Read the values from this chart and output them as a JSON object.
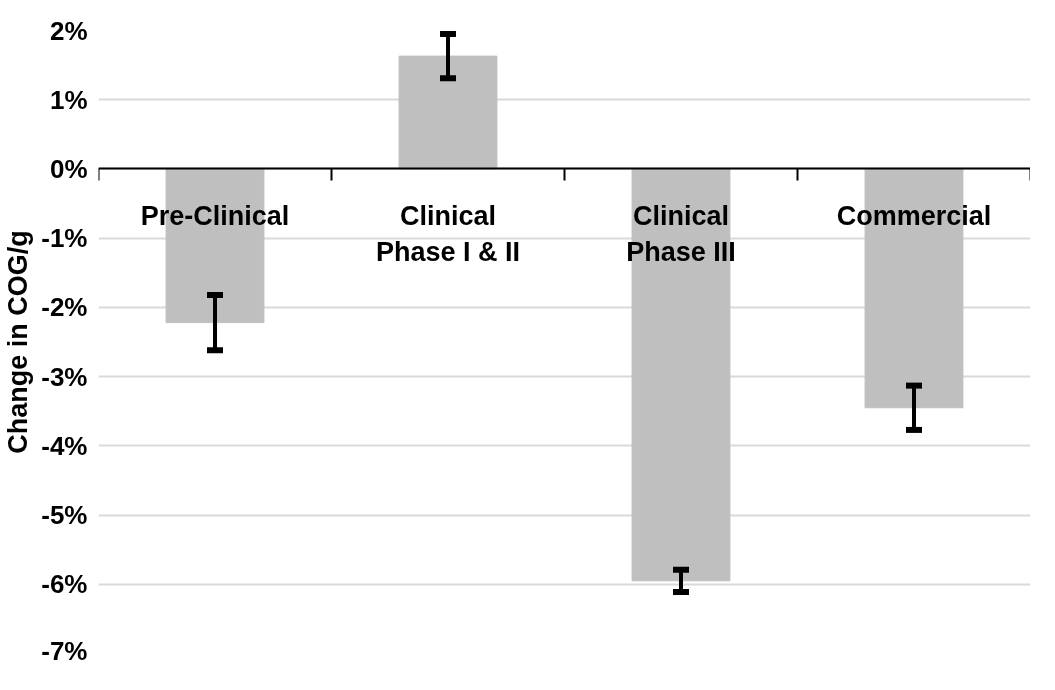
{
  "chart_data": {
    "type": "bar",
    "ylabel": "Change in COG/g",
    "categories": [
      "Pre-Clinical",
      "Clinical\nPhase I & II",
      "Clinical\nPhase III",
      "Commercial"
    ],
    "values": [
      -2.22,
      1.63,
      -5.95,
      -3.45
    ],
    "errors": [
      0.4,
      0.32,
      0.16,
      0.32
    ],
    "color": "#bfbfbf",
    "ylim": [
      -7,
      2
    ],
    "yticks": [
      {
        "value": -7,
        "label": "-7%"
      },
      {
        "value": -6,
        "label": "-6%"
      },
      {
        "value": -5,
        "label": "-5%"
      },
      {
        "value": -4,
        "label": "-4%"
      },
      {
        "value": -3,
        "label": "-3%"
      },
      {
        "value": -2,
        "label": "-2%"
      },
      {
        "value": -1,
        "label": "-1%"
      },
      {
        "value": 0,
        "label": "0%"
      },
      {
        "value": 1,
        "label": "1%"
      },
      {
        "value": 2,
        "label": "2%"
      }
    ],
    "grid": "y"
  }
}
